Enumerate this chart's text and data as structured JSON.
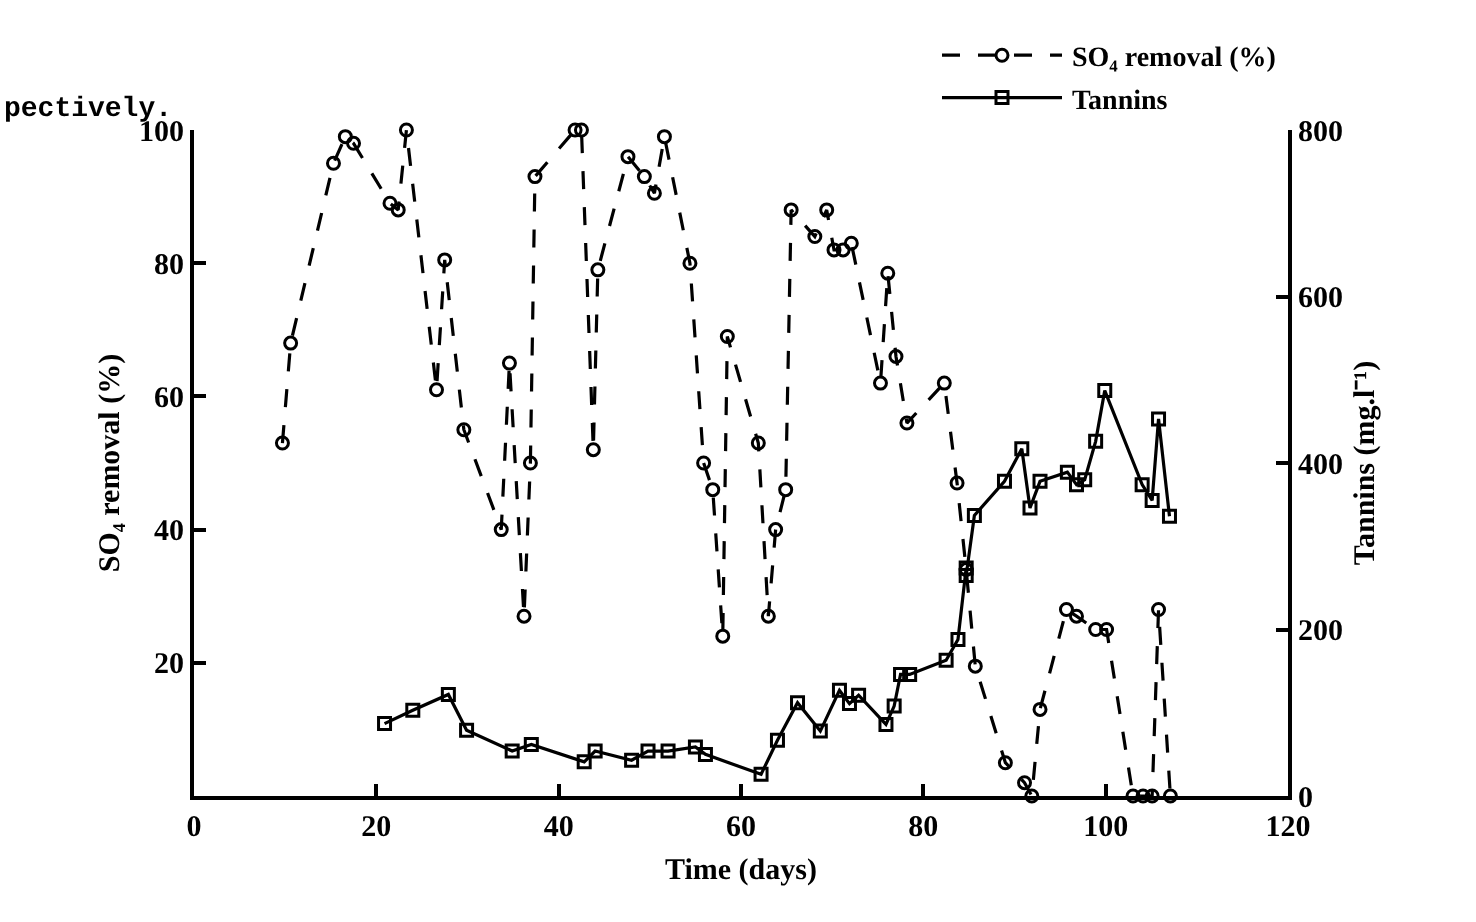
{
  "chart_data": {
    "type": "line",
    "xlabel": "Time (days)",
    "ylabel": "SO₄ removal (%)",
    "y2label": "Tannins (mg.l⁻¹)",
    "annotations": [
      "pectively."
    ],
    "xlim": [
      0,
      120
    ],
    "xticks": [
      0,
      20,
      40,
      60,
      80,
      100,
      120
    ],
    "ylim": [
      0,
      100
    ],
    "yticks": [
      20,
      40,
      60,
      80,
      100
    ],
    "y2lim": [
      0,
      800
    ],
    "y2ticks": [
      0,
      200,
      400,
      600,
      800
    ],
    "legend": "top right",
    "series": [
      {
        "name": "SO₄ removal (%)",
        "color": "#000000",
        "marker": "circle",
        "line_style": "dashed",
        "x": [
          9.7,
          10.6,
          15.3,
          16.6,
          17.5,
          21.5,
          22.4,
          23.3,
          26.6,
          27.5,
          29.6,
          33.7,
          34.6,
          36.2,
          36.9,
          37.4,
          41.8,
          42.5,
          43.8,
          44.3,
          47.6,
          49.4,
          50.5,
          51.6,
          54.4,
          55.9,
          56.9,
          58.0,
          58.5,
          61.9,
          63.0,
          63.8,
          64.9,
          65.5,
          68.1,
          69.4,
          70.2,
          71.2,
          72.1,
          75.3,
          76.1,
          77.0,
          78.2,
          82.3,
          83.7,
          84.7,
          85.7,
          89.0,
          91.1,
          91.9,
          92.8,
          95.7,
          96.8,
          98.9,
          100.1,
          103.0,
          104.1,
          105.1,
          105.8,
          107.1
        ],
        "values": [
          53,
          68,
          95,
          99,
          98,
          89,
          88,
          100,
          61,
          80.5,
          55,
          40,
          65,
          27,
          50,
          93,
          100,
          100,
          52,
          79,
          96,
          93,
          90.5,
          99,
          80,
          50,
          46,
          24,
          69,
          53,
          27,
          40,
          46,
          88,
          84,
          88,
          82,
          82,
          83,
          62,
          78.5,
          66,
          56,
          62,
          47,
          34,
          19.5,
          5,
          2,
          0,
          13,
          28,
          27,
          25,
          25,
          0,
          0,
          0,
          28,
          0
        ]
      },
      {
        "name": "Tannins",
        "color": "#000000",
        "marker": "square",
        "line_style": "solid",
        "axis": "y2",
        "x": [
          20.9,
          24.0,
          27.9,
          29.9,
          34.9,
          37.0,
          42.8,
          44.0,
          48.0,
          49.8,
          52.0,
          55.0,
          56.1,
          62.2,
          64.0,
          66.2,
          68.7,
          70.8,
          71.9,
          72.9,
          75.9,
          76.8,
          77.5,
          78.5,
          82.5,
          83.8,
          84.7,
          84.7,
          85.6,
          88.9,
          90.8,
          91.7,
          92.8,
          95.8,
          96.8,
          97.7,
          98.9,
          99.9,
          104.0,
          105.1,
          105.8,
          107.0
        ],
        "values": [
          87,
          103,
          122,
          79,
          54,
          62,
          41,
          54,
          43,
          54,
          54,
          59,
          50,
          26,
          67,
          112,
          78,
          127,
          111,
          121,
          86,
          108,
          146,
          146,
          163,
          188,
          274,
          265,
          337,
          378,
          417,
          346,
          378,
          389,
          374,
          380,
          426,
          487,
          374,
          355,
          453,
          336
        ]
      }
    ]
  }
}
